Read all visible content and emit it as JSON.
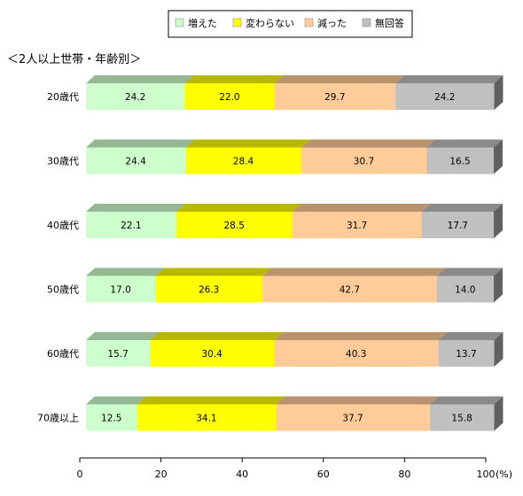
{
  "chart_data": {
    "type": "bar",
    "orientation": "horizontal",
    "stacked": true,
    "three_d": true,
    "subtitle": "＜2人以上世帯・年齢別＞",
    "categories": [
      "20歳代",
      "30歳代",
      "40歳代",
      "50歳代",
      "60歳代",
      "70歳以上"
    ],
    "series": [
      {
        "name": "増えた",
        "color": "#ccffcc",
        "values": [
          24.2,
          24.4,
          22.1,
          17.0,
          15.7,
          12.5
        ]
      },
      {
        "name": "変わらない",
        "color": "#ffff00",
        "values": [
          22.0,
          28.4,
          28.5,
          26.3,
          30.4,
          34.1
        ]
      },
      {
        "name": "減った",
        "color": "#ffcc99",
        "values": [
          29.7,
          30.7,
          31.7,
          42.7,
          40.3,
          37.7
        ]
      },
      {
        "name": "無回答",
        "color": "#c0c0c0",
        "values": [
          24.2,
          16.5,
          17.7,
          14.0,
          13.7,
          15.8
        ]
      }
    ],
    "xlim": [
      0,
      100
    ],
    "xticks": [
      0,
      20,
      40,
      60,
      80,
      100
    ],
    "xunit": "(%)",
    "legend": "top-right",
    "grid": false
  }
}
